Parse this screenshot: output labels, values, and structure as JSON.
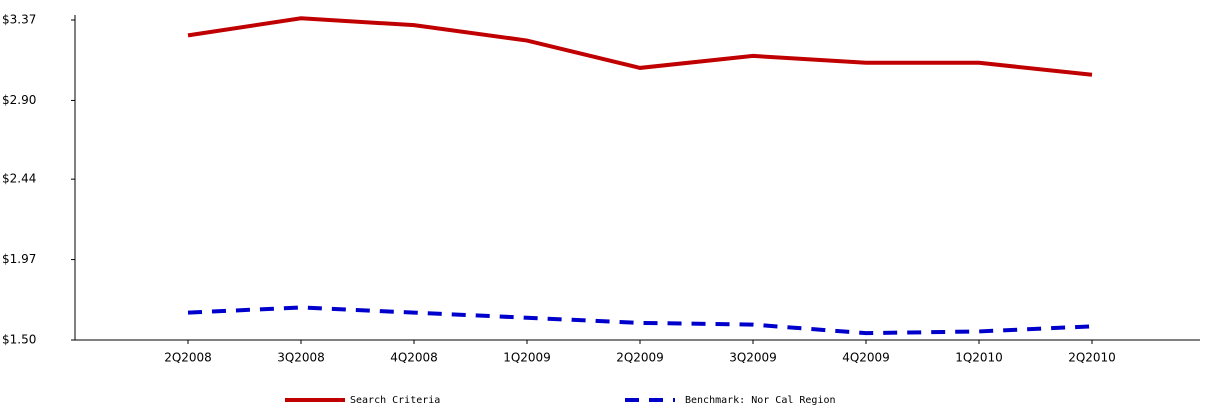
{
  "chart_data": {
    "type": "line",
    "categories": [
      "2Q2008",
      "3Q2008",
      "4Q2008",
      "1Q2009",
      "2Q2009",
      "3Q2009",
      "4Q2009",
      "1Q2010",
      "2Q2010"
    ],
    "series": [
      {
        "name": "Search Criteria",
        "color": "#c00000",
        "dash": false,
        "values": [
          3.28,
          3.38,
          3.34,
          3.25,
          3.09,
          3.16,
          3.12,
          3.12,
          3.05
        ]
      },
      {
        "name": "Benchmark: Nor Cal Region",
        "color": "#0000cc",
        "dash": true,
        "values": [
          1.66,
          1.69,
          1.66,
          1.63,
          1.6,
          1.59,
          1.54,
          1.55,
          1.58
        ]
      }
    ],
    "ylim": [
      1.5,
      3.37
    ],
    "yticks": [
      {
        "value": 1.5,
        "label": "$1.50"
      },
      {
        "value": 1.97,
        "label": "$1.97"
      },
      {
        "value": 2.44,
        "label": "$2.44"
      },
      {
        "value": 2.9,
        "label": "$2.90"
      },
      {
        "value": 3.37,
        "label": "$3.37"
      }
    ],
    "legend": "bottom"
  }
}
